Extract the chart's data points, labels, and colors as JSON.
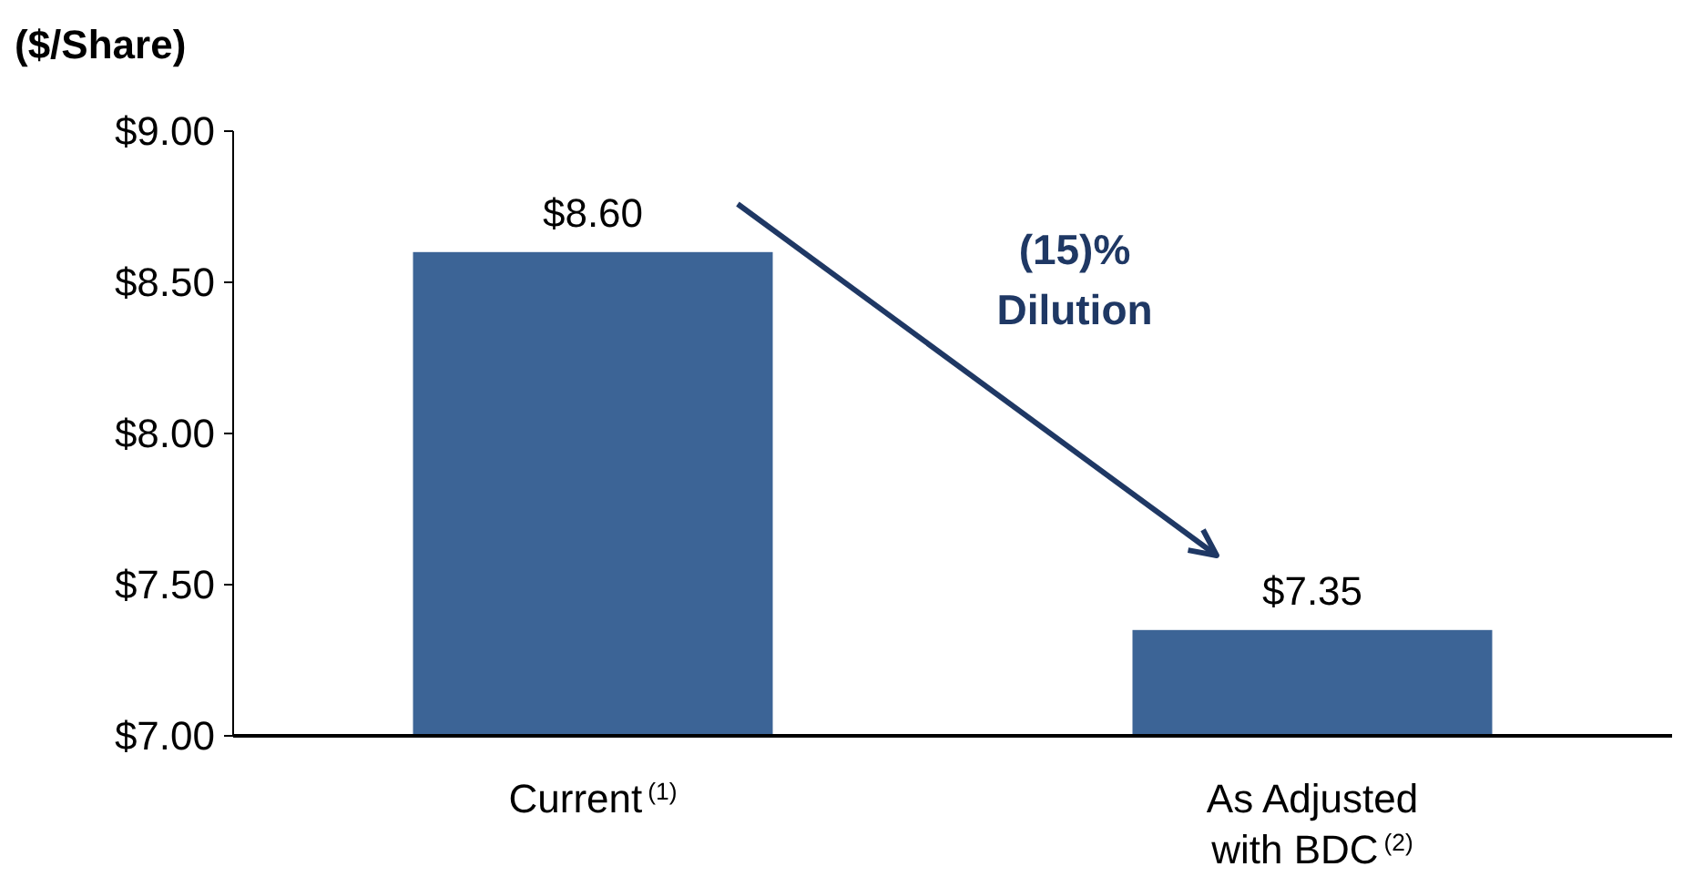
{
  "chart_data": {
    "type": "bar",
    "ylabel": "($/Share)",
    "categories": [
      "Current$^{(1)}$",
      "As Adjusted with BDC$^{(2)}$"
    ],
    "values": [
      8.6,
      7.35
    ],
    "value_labels": [
      "$8.60",
      "$7.35"
    ],
    "color": "#3c6496",
    "ylim": [
      7,
      9
    ],
    "yticks": [
      {
        "value": 7,
        "label": "$7.00"
      },
      {
        "value": 7.5,
        "label": "$7.50"
      },
      {
        "value": 8,
        "label": "$8.00"
      },
      {
        "value": 8.5,
        "label": "$8.50"
      },
      {
        "value": 9,
        "label": "$9.00"
      }
    ],
    "annotations": [
      "(15)% Dilution"
    ],
    "grid": false
  }
}
